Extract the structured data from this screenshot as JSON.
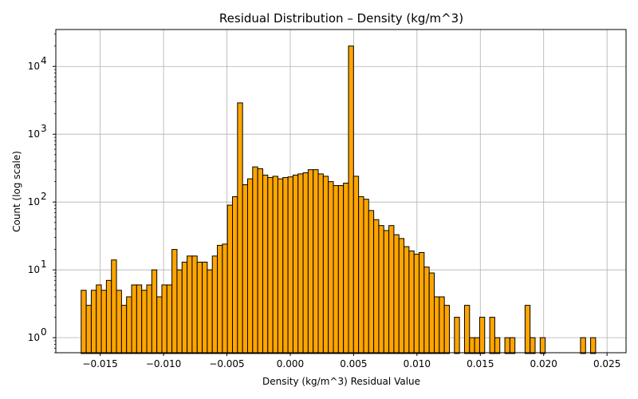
{
  "chart_data": {
    "type": "bar",
    "title": "Residual Distribution – Density (kg/m^3)",
    "xlabel": "Density (kg/m^3) Residual Value",
    "ylabel": "Count (log scale)",
    "yscale": "log",
    "xlim": [
      -0.0185,
      0.0265
    ],
    "ylim": [
      0.6,
      35000
    ],
    "grid": true,
    "bar_color": "#ffa500",
    "edge_color": "#000000",
    "bin_range": [
      -0.0165,
      0.0245
    ],
    "xticks": [
      {
        "value": -0.015,
        "label": "−0.015"
      },
      {
        "value": -0.01,
        "label": "−0.010"
      },
      {
        "value": -0.005,
        "label": "−0.005"
      },
      {
        "value": 0.0,
        "label": "0.000"
      },
      {
        "value": 0.005,
        "label": "0.005"
      },
      {
        "value": 0.01,
        "label": "0.010"
      },
      {
        "value": 0.015,
        "label": "0.015"
      },
      {
        "value": 0.02,
        "label": "0.020"
      },
      {
        "value": 0.025,
        "label": "0.025"
      }
    ],
    "yticks": [
      {
        "value": 1,
        "base": "10",
        "exp": "0"
      },
      {
        "value": 10,
        "base": "10",
        "exp": "1"
      },
      {
        "value": 100,
        "base": "10",
        "exp": "2"
      },
      {
        "value": 1000,
        "base": "10",
        "exp": "3"
      },
      {
        "value": 10000,
        "base": "10",
        "exp": "4"
      }
    ],
    "counts": [
      5,
      3,
      5,
      6,
      5,
      7,
      14,
      5,
      3,
      4,
      6,
      6,
      5,
      6,
      10,
      4,
      6,
      6,
      20,
      10,
      13,
      16,
      16,
      13,
      13,
      10,
      16,
      23,
      24,
      90,
      120,
      2900,
      180,
      220,
      330,
      310,
      250,
      230,
      240,
      220,
      230,
      235,
      250,
      260,
      270,
      300,
      300,
      260,
      240,
      200,
      175,
      175,
      190,
      20000,
      240,
      120,
      110,
      75,
      55,
      45,
      38,
      45,
      33,
      29,
      22,
      19,
      17,
      18,
      11,
      9,
      4,
      4,
      3,
      0,
      2,
      0,
      3,
      1,
      1,
      2,
      0,
      2,
      1,
      0,
      1,
      1,
      0,
      0,
      3,
      1,
      0,
      1,
      0,
      0,
      0,
      0,
      0,
      0,
      0,
      1,
      0,
      1,
      0
    ]
  }
}
